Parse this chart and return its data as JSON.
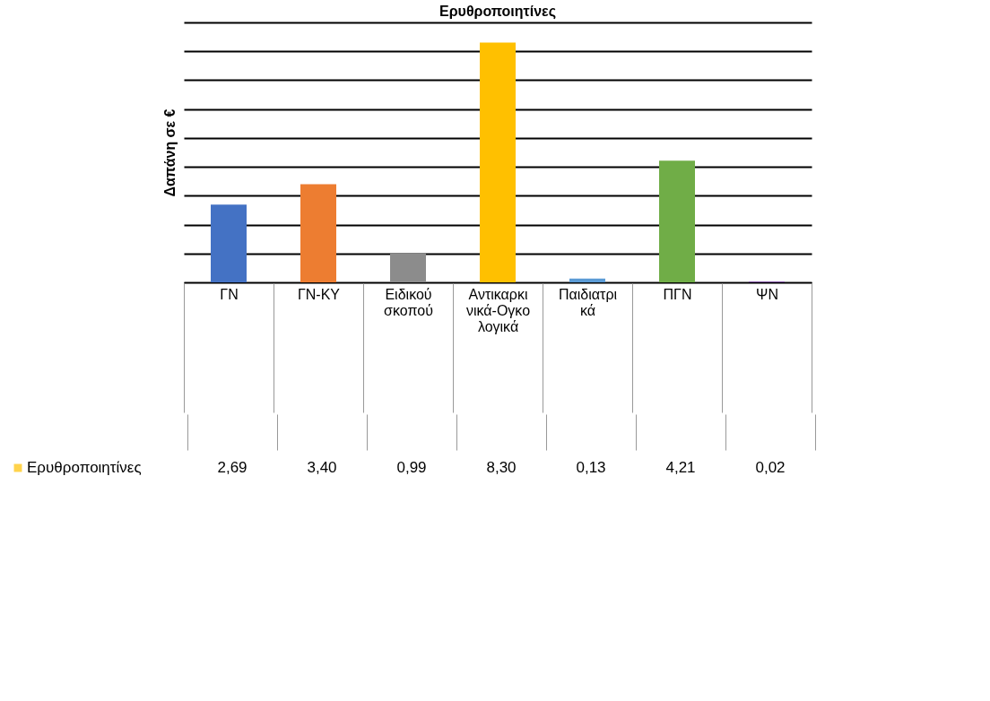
{
  "chart_data": {
    "type": "bar",
    "title": "Ερυθροποιητίνες",
    "ylabel": "Δαπάνη σε €",
    "categories": [
      "ΓΝ",
      "ΓΝ-ΚΥ",
      "Ειδικού σκοπού",
      "Αντικαρκινικά-Ογκολογικά",
      "Παιδιατρικά",
      "ΠΓΝ",
      "ΨΝ"
    ],
    "series": [
      {
        "name": "Ερυθροποιητίνες",
        "color": "#ffc000",
        "colors": [
          "#4472c4",
          "#ed7d31",
          "#8c8c8c",
          "#ffc000",
          "#5b9bd5",
          "#70ad47",
          "#7030a0"
        ],
        "values": [
          2.69,
          3.4,
          0.99,
          8.3,
          0.13,
          4.21,
          0.02
        ],
        "value_labels": [
          "2,69",
          "3,40",
          "0,99",
          "8,30",
          "0,13",
          "4,21",
          "0,02"
        ]
      }
    ],
    "ylim": [
      0,
      9
    ],
    "yticks": [
      {
        "value": 0,
        "label": null
      },
      {
        "value": 1,
        "label": null
      },
      {
        "value": 2,
        "label": null
      },
      {
        "value": 3,
        "label": null
      },
      {
        "value": 4,
        "label": null
      },
      {
        "value": 5,
        "label": null
      },
      {
        "value": 6,
        "label": null
      },
      {
        "value": 7,
        "label": null
      },
      {
        "value": 8,
        "label": null
      },
      {
        "value": 9,
        "label": null
      }
    ],
    "grid": "y",
    "tick_labels": "x",
    "legend": "bottom"
  }
}
